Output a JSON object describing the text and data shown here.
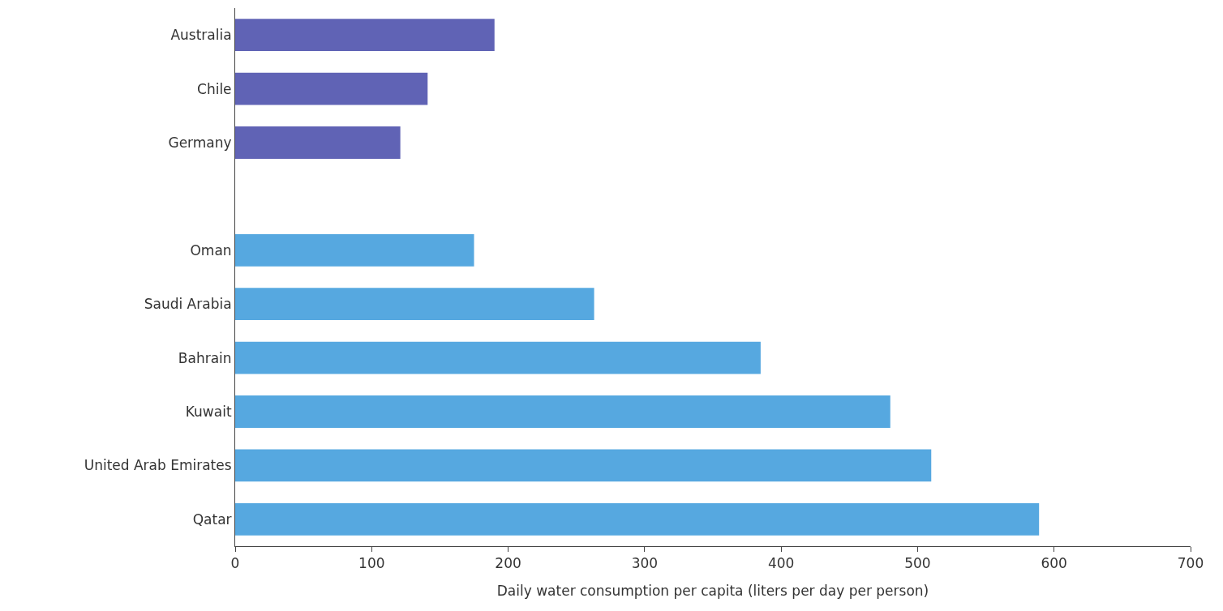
{
  "chart_data": {
    "type": "bar",
    "orientation": "horizontal",
    "xlabel": "Daily water consumption per capita (liters per day per person)",
    "categories": [
      "Australia",
      "Chile",
      "Germany",
      null,
      "Oman",
      "Saudi Arabia",
      "Bahrain",
      "Kuwait",
      "United Arab Emirates",
      "Qatar"
    ],
    "values": [
      190,
      141,
      121,
      null,
      175,
      263,
      385,
      480,
      510,
      589
    ],
    "colors": [
      "#6063b5",
      "#6063b5",
      "#6063b5",
      "#56a8e0",
      "#56a8e0",
      "#56a8e0",
      "#56a8e0",
      "#56a8e0",
      "#56a8e0",
      "#56a8e0"
    ],
    "xlim": [
      0,
      700
    ],
    "xticks": [
      0,
      100,
      200,
      300,
      400,
      500,
      600,
      700
    ],
    "grid": false,
    "legend": false
  }
}
